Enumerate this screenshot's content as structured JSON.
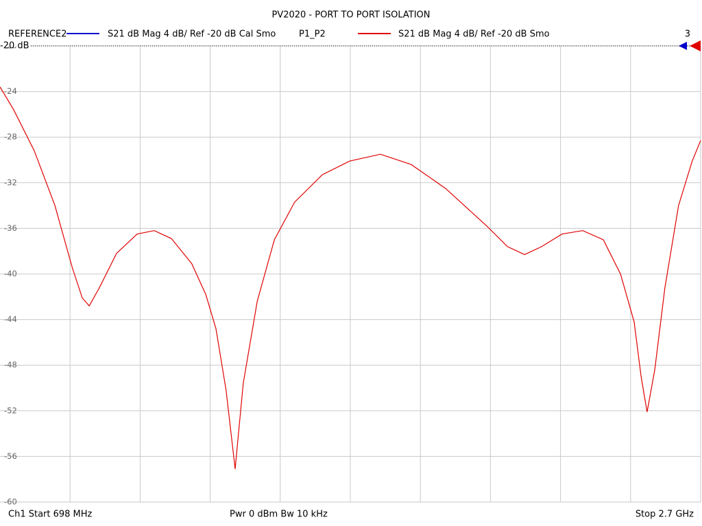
{
  "chart_data": {
    "type": "line",
    "title": "PV2020 - PORT TO PORT ISOLATION",
    "reference": {
      "name": "REFERENCE2",
      "label": "S21  dB Mag  4 dB/ Ref -20 dB  Cal Smo",
      "color": "#0000cc"
    },
    "reference_level": "-20 dB",
    "channel_marker": "3",
    "footer": {
      "start": "Ch1  Start  698 MHz",
      "power": "Pwr  0 dBm  Bw  10 kHz",
      "stop": "Stop  2.7 GHz"
    },
    "x": [
      698,
      737,
      796,
      855,
      904,
      933,
      953,
      982,
      1031,
      1090,
      1139,
      1188,
      1246,
      1286,
      1315,
      1344,
      1370,
      1393,
      1433,
      1482,
      1540,
      1619,
      1697,
      1785,
      1873,
      1971,
      2089,
      2148,
      2197,
      2246,
      2304,
      2363,
      2422,
      2471,
      2510,
      2530,
      2547,
      2569,
      2598,
      2637,
      2676,
      2700
    ],
    "series": [
      {
        "name": "P1_P2",
        "label": "S21  dB Mag  4 dB/ Ref -20 dB  Smo",
        "color": "#e00000",
        "values": [
          -23.6,
          -25.6,
          -29.2,
          -34.0,
          -39.4,
          -42.1,
          -42.8,
          -41.2,
          -38.2,
          -36.5,
          -36.2,
          -36.9,
          -39.1,
          -41.8,
          -44.8,
          -50.2,
          -57.1,
          -49.6,
          -42.4,
          -37.0,
          -33.7,
          -31.3,
          -30.1,
          -29.5,
          -30.4,
          -32.5,
          -35.8,
          -37.6,
          -38.3,
          -37.6,
          -36.5,
          -36.2,
          -37.0,
          -40.0,
          -44.2,
          -49.0,
          -52.1,
          -48.4,
          -41.2,
          -34.0,
          -30.1,
          -28.3
        ]
      }
    ],
    "xlim": [
      698,
      2700
    ],
    "ylim": [
      -60,
      -20
    ],
    "yticks": [
      -60,
      -56,
      -52,
      -48,
      -44,
      -40,
      -36,
      -32,
      -28,
      -24,
      -20
    ],
    "grid": true
  }
}
